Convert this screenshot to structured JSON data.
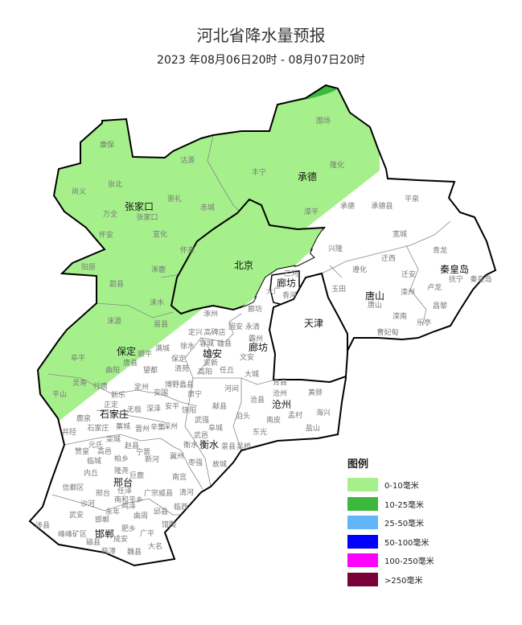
{
  "header": {
    "title": "河北省降水量预报",
    "subtitle": "2023 年08月06日20时 - 08月07日20时"
  },
  "legend": {
    "title": "图例",
    "items": [
      {
        "label": "0-10毫米",
        "color": "#a6f08c"
      },
      {
        "label": "10-25毫米",
        "color": "#3cb93c"
      },
      {
        "label": "25-50毫米",
        "color": "#60b6f8"
      },
      {
        "label": "50-100毫米",
        "color": "#0000fe"
      },
      {
        "label": "100-250毫米",
        "color": "#fe00fe"
      },
      {
        "label": ">250毫米",
        "color": "#7a0038"
      }
    ]
  },
  "map": {
    "prefectures": [
      "张家口",
      "承德",
      "北京",
      "秦皇岛",
      "唐山",
      "廊坊",
      "天津",
      "保定",
      "雄安",
      "廊坊",
      "石家庄",
      "沧州",
      "衡水",
      "邢台",
      "邯郸"
    ],
    "counties": [
      "康保",
      "沽源",
      "尚义",
      "张北",
      "崇礼",
      "万全",
      "张家口",
      "赤城",
      "怀安",
      "宣化",
      "怀来",
      "阳原",
      "涿鹿",
      "蔚县",
      "围场",
      "丰宁",
      "隆化",
      "滦平",
      "承德",
      "承德县",
      "平泉",
      "宽城",
      "兴隆",
      "青龙",
      "抚宁",
      "秦皇岛",
      "卢龙",
      "昌黎",
      "迁西",
      "遵化",
      "迁安",
      "玉田",
      "唐山",
      "滦州",
      "滦南",
      "乐亭",
      "曹妃甸",
      "三河",
      "大厂",
      "香河",
      "廊坊",
      "涞水",
      "涞源",
      "易县",
      "涿州",
      "定兴",
      "高碑店",
      "阜平",
      "唐县",
      "顺平",
      "满城",
      "徐水",
      "保定",
      "清苑",
      "望都",
      "曲阳",
      "定州",
      "博野蠡县",
      "安国",
      "容城",
      "雄县",
      "安新",
      "高阳",
      "任丘",
      "固安",
      "永清",
      "霸州",
      "文安",
      "大城",
      "灵寿",
      "行唐",
      "平山",
      "新乐",
      "正定",
      "鹿泉",
      "石家庄",
      "藁城",
      "晋州",
      "无极",
      "深泽",
      "井陉",
      "栾城",
      "元氏",
      "赵县",
      "辛集",
      "安平",
      "饶阳",
      "肃宁",
      "河间",
      "献县",
      "深州",
      "武强",
      "武邑",
      "衡水",
      "冀州",
      "枣强",
      "故城",
      "景县",
      "阜城",
      "吴桥",
      "东光",
      "泊头",
      "南皮",
      "盐山",
      "孟村",
      "海兴",
      "沧县",
      "沧州",
      "青县",
      "黄骅",
      "赞皇",
      "高邑",
      "柏乡",
      "宁晋",
      "新河",
      "临城",
      "内丘",
      "隆尧",
      "巨鹿",
      "信都区",
      "邢台",
      "任泽",
      "广宗威县",
      "南宫",
      "清河",
      "沙河",
      "南和平乡",
      "临西",
      "武安",
      "永年",
      "鸡泽",
      "曲周",
      "邱县",
      "馆陶",
      "涉县",
      "邯郸",
      "峰峰矿区",
      "肥乡",
      "广平",
      "磁县",
      "成安",
      "临漳",
      "魏县",
      "大名"
    ]
  },
  "forecast": {
    "dominant_level": "0-10毫米",
    "patch_level": "10-25毫米"
  }
}
